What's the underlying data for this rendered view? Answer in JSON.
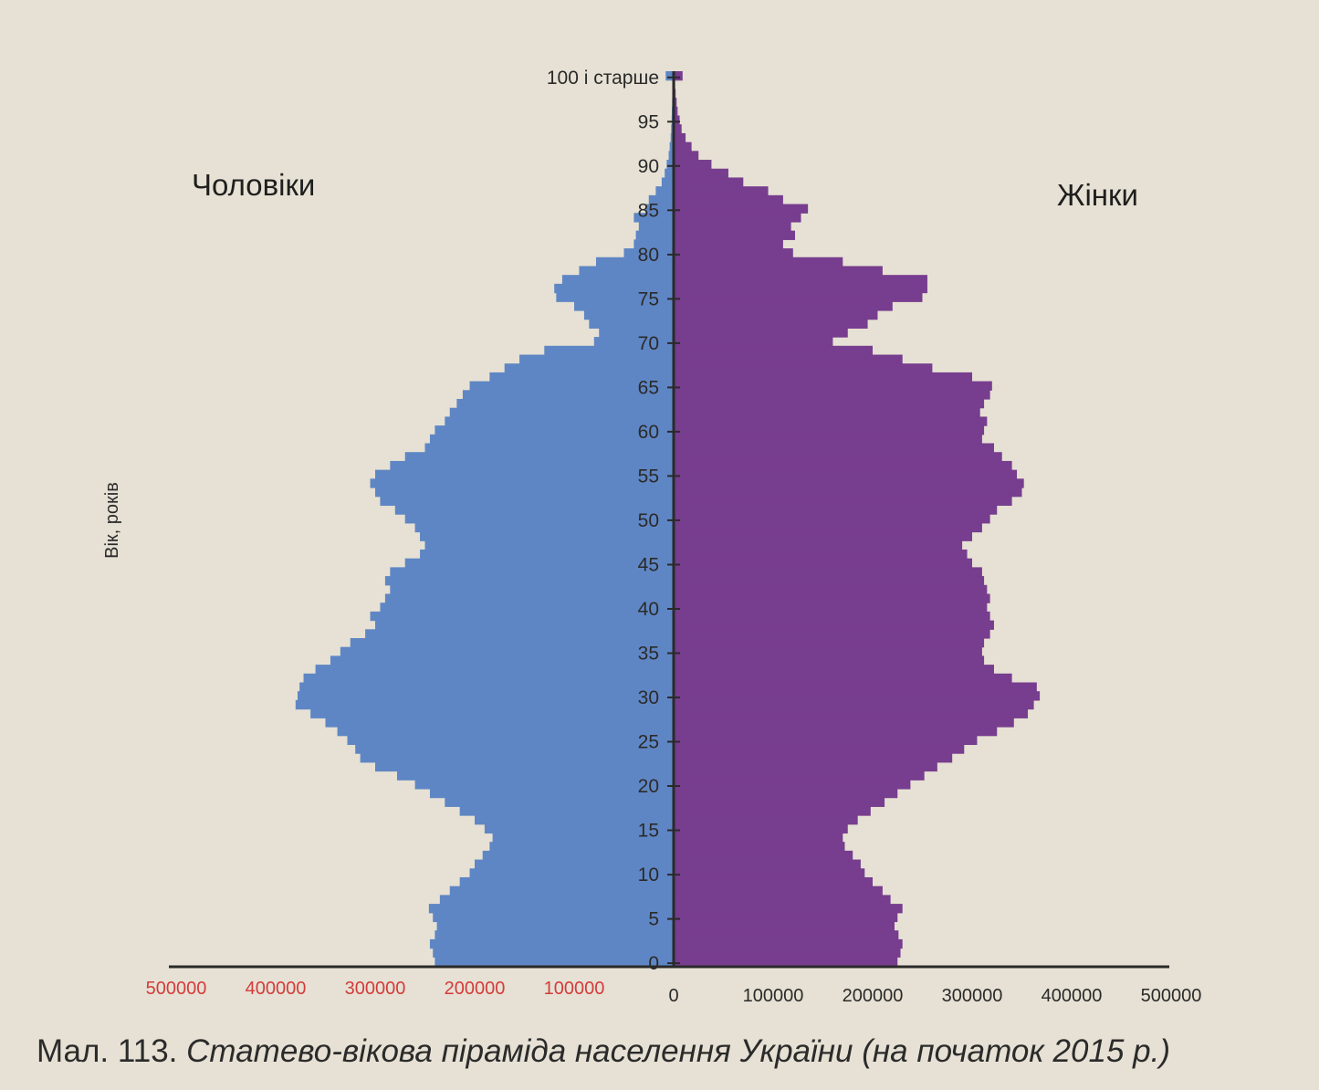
{
  "chart_data": {
    "type": "bar",
    "orientation": "population-pyramid",
    "ylabel": "Вік, років",
    "caption_label": "Мал. 113.",
    "caption_text": "Статево-вікова піраміда населення України (на початок 2015 р.)",
    "series": [
      {
        "name": "Чоловіки",
        "side": "left",
        "color": "#5f86c4"
      },
      {
        "name": "Жінки",
        "side": "right",
        "color": "#773d8e"
      }
    ],
    "x_ticks_left": [
      "500000",
      "400000",
      "300000",
      "200000",
      "100000"
    ],
    "x_tick_zero": "0",
    "x_ticks_right": [
      "100000",
      "200000",
      "300000",
      "400000",
      "500000"
    ],
    "y_ticks": [
      "0",
      "5",
      "10",
      "15",
      "20",
      "25",
      "30",
      "35",
      "40",
      "45",
      "50",
      "55",
      "60",
      "65",
      "70",
      "75",
      "80",
      "85",
      "90",
      "95",
      "100 і старше"
    ],
    "xlim": [
      0,
      500000
    ],
    "age_range": [
      0,
      100
    ],
    "male": [
      240000,
      242000,
      245000,
      240000,
      238000,
      242000,
      246000,
      235000,
      225000,
      215000,
      205000,
      200000,
      192000,
      185000,
      182000,
      190000,
      200000,
      215000,
      230000,
      245000,
      260000,
      278000,
      300000,
      315000,
      320000,
      328000,
      338000,
      350000,
      365000,
      380000,
      378000,
      376000,
      372000,
      360000,
      345000,
      335000,
      325000,
      310000,
      300000,
      305000,
      295000,
      290000,
      285000,
      290000,
      285000,
      270000,
      255000,
      250000,
      255000,
      260000,
      270000,
      280000,
      295000,
      300000,
      305000,
      300000,
      285000,
      270000,
      250000,
      245000,
      240000,
      230000,
      225000,
      218000,
      212000,
      205000,
      185000,
      170000,
      155000,
      130000,
      80000,
      75000,
      85000,
      90000,
      100000,
      118000,
      120000,
      112000,
      95000,
      78000,
      50000,
      40000,
      38000,
      35000,
      40000,
      28000,
      25000,
      18000,
      12000,
      9000,
      7000,
      5000,
      4000,
      3000,
      2500,
      2000,
      1800,
      1500,
      1300,
      1100,
      8000
    ],
    "female": [
      225000,
      228000,
      230000,
      226000,
      222000,
      225000,
      230000,
      218000,
      210000,
      200000,
      192000,
      188000,
      180000,
      172000,
      170000,
      175000,
      185000,
      198000,
      212000,
      225000,
      238000,
      252000,
      265000,
      280000,
      292000,
      305000,
      325000,
      342000,
      356000,
      362000,
      368000,
      365000,
      340000,
      322000,
      312000,
      310000,
      312000,
      318000,
      322000,
      318000,
      315000,
      318000,
      315000,
      312000,
      310000,
      300000,
      295000,
      290000,
      300000,
      310000,
      318000,
      325000,
      340000,
      350000,
      352000,
      345000,
      340000,
      330000,
      322000,
      310000,
      312000,
      315000,
      308000,
      312000,
      318000,
      320000,
      300000,
      260000,
      230000,
      200000,
      160000,
      175000,
      195000,
      205000,
      220000,
      250000,
      255000,
      255000,
      210000,
      170000,
      120000,
      110000,
      122000,
      118000,
      128000,
      135000,
      110000,
      95000,
      70000,
      55000,
      38000,
      25000,
      18000,
      12000,
      8000,
      6000,
      4000,
      3000,
      2000,
      1500,
      9000
    ]
  }
}
